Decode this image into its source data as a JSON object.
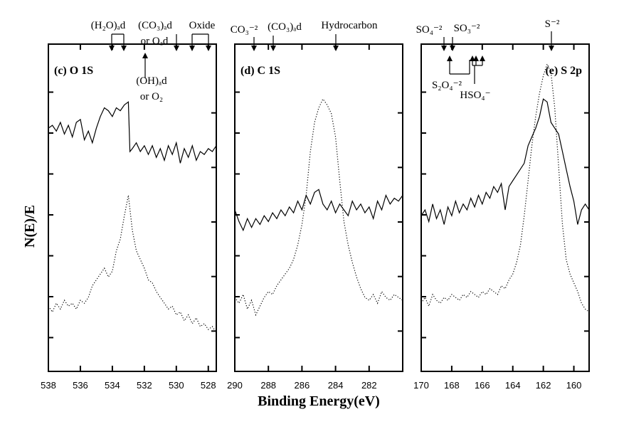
{
  "chart_data": {
    "type": "line",
    "ylabel": "N(E)/E",
    "xlabel": "Binding Energy(eV)",
    "panels": [
      {
        "label": "(c) O 1S",
        "xlim": [
          538,
          527.5
        ],
        "xticks": [
          538,
          536,
          534,
          532,
          530,
          528
        ],
        "series": [
          {
            "style": "solid",
            "x": [
              538,
              537.75,
              537.5,
              537.25,
              537,
              536.75,
              536.5,
              536.25,
              536,
              535.75,
              535.5,
              535.25,
              535,
              534.75,
              534.5,
              534.25,
              534,
              533.75,
              533.5,
              533.25,
              533,
              532.9,
              532.75,
              532.5,
              532.25,
              532,
              531.75,
              531.5,
              531.25,
              531,
              530.75,
              530.5,
              530.25,
              530,
              529.75,
              529.5,
              529.25,
              529,
              528.75,
              528.5,
              528.25,
              528,
              527.75,
              527.5
            ],
            "y": [
              0.78,
              0.79,
              0.77,
              0.8,
              0.76,
              0.79,
              0.75,
              0.8,
              0.81,
              0.74,
              0.77,
              0.73,
              0.78,
              0.82,
              0.85,
              0.84,
              0.82,
              0.85,
              0.84,
              0.86,
              0.87,
              0.7,
              0.71,
              0.73,
              0.7,
              0.72,
              0.69,
              0.72,
              0.68,
              0.71,
              0.67,
              0.72,
              0.69,
              0.73,
              0.66,
              0.71,
              0.68,
              0.72,
              0.67,
              0.7,
              0.69,
              0.71,
              0.7,
              0.72
            ]
          },
          {
            "style": "dotted",
            "x": [
              538,
              537.75,
              537.5,
              537.25,
              537,
              536.75,
              536.5,
              536.25,
              536,
              535.75,
              535.5,
              535.25,
              535,
              534.75,
              534.5,
              534.25,
              534,
              533.75,
              533.5,
              533.25,
              533,
              532.75,
              532.5,
              532.25,
              532,
              531.75,
              531.5,
              531.25,
              531,
              530.75,
              530.5,
              530.25,
              530,
              529.75,
              529.5,
              529.25,
              529,
              528.75,
              528.5,
              528.25,
              528,
              527.75,
              527.5
            ],
            "y": [
              0.17,
              0.15,
              0.18,
              0.16,
              0.19,
              0.17,
              0.18,
              0.16,
              0.19,
              0.18,
              0.2,
              0.24,
              0.26,
              0.28,
              0.3,
              0.27,
              0.29,
              0.36,
              0.4,
              0.48,
              0.55,
              0.43,
              0.36,
              0.33,
              0.3,
              0.26,
              0.25,
              0.22,
              0.2,
              0.18,
              0.16,
              0.17,
              0.14,
              0.15,
              0.12,
              0.14,
              0.11,
              0.13,
              0.1,
              0.11,
              0.09,
              0.1,
              0.08
            ]
          }
        ],
        "annotations": [
          {
            "text": "(H₂O)ₐd",
            "x": 534,
            "arrow_to": [
              534,
              533.2
            ]
          },
          {
            "text": "(CO₃)ₐd",
            "x": 532,
            "arrow_to": [
              532
            ]
          },
          {
            "text": "or Oₐd",
            "x": 532
          },
          {
            "text": "Oxide",
            "x": 529,
            "arrow_to": [
              529,
              528
            ]
          },
          {
            "text": "(OH)ₐd",
            "x": 531.6
          },
          {
            "text": "or O₂",
            "x": 531.6
          }
        ]
      },
      {
        "label": "(d) C 1S",
        "xlim": [
          290,
          280
        ],
        "xticks": [
          290,
          288,
          286,
          284,
          282
        ],
        "series": [
          {
            "style": "solid",
            "x": [
              290,
              289.75,
              289.5,
              289.25,
              289,
              288.75,
              288.5,
              288.25,
              288,
              287.75,
              287.5,
              287.25,
              287,
              286.75,
              286.5,
              286.25,
              286,
              285.75,
              285.5,
              285.25,
              285,
              284.75,
              284.5,
              284.25,
              284,
              283.75,
              283.5,
              283.25,
              283,
              282.75,
              282.5,
              282.25,
              282,
              281.75,
              281.5,
              281.25,
              281,
              280.75,
              280.5,
              280.25,
              280
            ],
            "y": [
              0.5,
              0.46,
              0.43,
              0.47,
              0.44,
              0.47,
              0.45,
              0.48,
              0.46,
              0.49,
              0.47,
              0.5,
              0.48,
              0.51,
              0.49,
              0.53,
              0.5,
              0.55,
              0.52,
              0.56,
              0.57,
              0.52,
              0.5,
              0.53,
              0.49,
              0.52,
              0.5,
              0.48,
              0.53,
              0.5,
              0.52,
              0.49,
              0.51,
              0.47,
              0.53,
              0.5,
              0.55,
              0.52,
              0.54,
              0.53,
              0.55
            ]
          },
          {
            "style": "dotted",
            "x": [
              290,
              289.75,
              289.5,
              289.25,
              289,
              288.75,
              288.5,
              288.25,
              288,
              287.75,
              287.5,
              287.25,
              287,
              286.75,
              286.5,
              286.25,
              286,
              285.75,
              285.5,
              285.25,
              285,
              284.75,
              284.5,
              284.25,
              284,
              283.75,
              283.5,
              283.25,
              283,
              282.75,
              282.5,
              282.25,
              282,
              281.75,
              281.5,
              281.25,
              281,
              280.75,
              280.5,
              280.25,
              280
            ],
            "y": [
              0.2,
              0.18,
              0.21,
              0.16,
              0.19,
              0.14,
              0.17,
              0.2,
              0.22,
              0.21,
              0.24,
              0.26,
              0.28,
              0.3,
              0.33,
              0.38,
              0.45,
              0.55,
              0.7,
              0.8,
              0.85,
              0.88,
              0.86,
              0.83,
              0.75,
              0.6,
              0.46,
              0.38,
              0.32,
              0.27,
              0.23,
              0.2,
              0.19,
              0.21,
              0.18,
              0.22,
              0.2,
              0.19,
              0.21,
              0.2,
              0.19
            ]
          }
        ],
        "annotations": [
          {
            "text": "CO₃⁻²",
            "x": 289.2,
            "arrow_to": [
              289.2
            ]
          },
          {
            "text": "(CO₃)ₐd",
            "x": 288,
            "arrow_to": [
              288
            ]
          },
          {
            "text": "Hydrocarbon",
            "x": 284.6,
            "arrow_to": [
              284.6
            ]
          }
        ]
      },
      {
        "label": "(e) S 2p",
        "xlim": [
          170,
          159
        ],
        "xticks": [
          170,
          168,
          166,
          164,
          162,
          160
        ],
        "series": [
          {
            "style": "solid",
            "x": [
              170,
              169.75,
              169.5,
              169.25,
              169,
              168.75,
              168.5,
              168.25,
              168,
              167.75,
              167.5,
              167.25,
              167,
              166.75,
              166.5,
              166.25,
              166,
              165.75,
              165.5,
              165.25,
              165,
              164.75,
              164.5,
              164.25,
              164,
              163.75,
              163.5,
              163.25,
              163,
              162.75,
              162.5,
              162.25,
              162,
              161.75,
              161.5,
              161.25,
              161,
              160.75,
              160.5,
              160.25,
              160,
              159.75,
              159.5,
              159.25,
              159
            ],
            "y": [
              0.48,
              0.5,
              0.46,
              0.52,
              0.47,
              0.5,
              0.45,
              0.51,
              0.48,
              0.53,
              0.49,
              0.52,
              0.5,
              0.54,
              0.51,
              0.55,
              0.52,
              0.56,
              0.54,
              0.58,
              0.56,
              0.59,
              0.5,
              0.58,
              0.6,
              0.62,
              0.64,
              0.66,
              0.72,
              0.75,
              0.78,
              0.82,
              0.88,
              0.87,
              0.8,
              0.78,
              0.76,
              0.7,
              0.64,
              0.58,
              0.53,
              0.45,
              0.5,
              0.52,
              0.5
            ]
          },
          {
            "style": "dotted",
            "x": [
              170,
              169.75,
              169.5,
              169.25,
              169,
              168.75,
              168.5,
              168.25,
              168,
              167.75,
              167.5,
              167.25,
              167,
              166.75,
              166.5,
              166.25,
              166,
              165.75,
              165.5,
              165.25,
              165,
              164.75,
              164.5,
              164.25,
              164,
              163.75,
              163.5,
              163.25,
              163,
              162.75,
              162.5,
              162.25,
              162,
              161.75,
              161.5,
              161.25,
              161,
              160.75,
              160.5,
              160.25,
              160,
              159.75,
              159.5,
              159.25,
              159
            ],
            "y": [
              0.18,
              0.2,
              0.17,
              0.21,
              0.19,
              0.18,
              0.2,
              0.19,
              0.21,
              0.2,
              0.19,
              0.21,
              0.2,
              0.22,
              0.21,
              0.2,
              0.22,
              0.21,
              0.23,
              0.22,
              0.21,
              0.24,
              0.23,
              0.26,
              0.28,
              0.32,
              0.38,
              0.48,
              0.6,
              0.72,
              0.82,
              0.9,
              0.96,
              1.0,
              0.97,
              0.85,
              0.65,
              0.45,
              0.33,
              0.28,
              0.25,
              0.22,
              0.18,
              0.16,
              0.15
            ]
          }
        ],
        "annotations": [
          {
            "text": "SO₄⁻²",
            "x": 168.6,
            "arrow_to": [
              168.6
            ]
          },
          {
            "text": "SO₃⁻²",
            "x": 167.8,
            "arrow_to": [
              167.8
            ]
          },
          {
            "text": "S⁻²",
            "x": 161.6,
            "arrow_to": [
              161.6
            ]
          },
          {
            "text": "S₂O₄⁻²",
            "x": 168
          },
          {
            "text": "HSO₄⁻",
            "x": 166.8
          }
        ]
      }
    ]
  }
}
